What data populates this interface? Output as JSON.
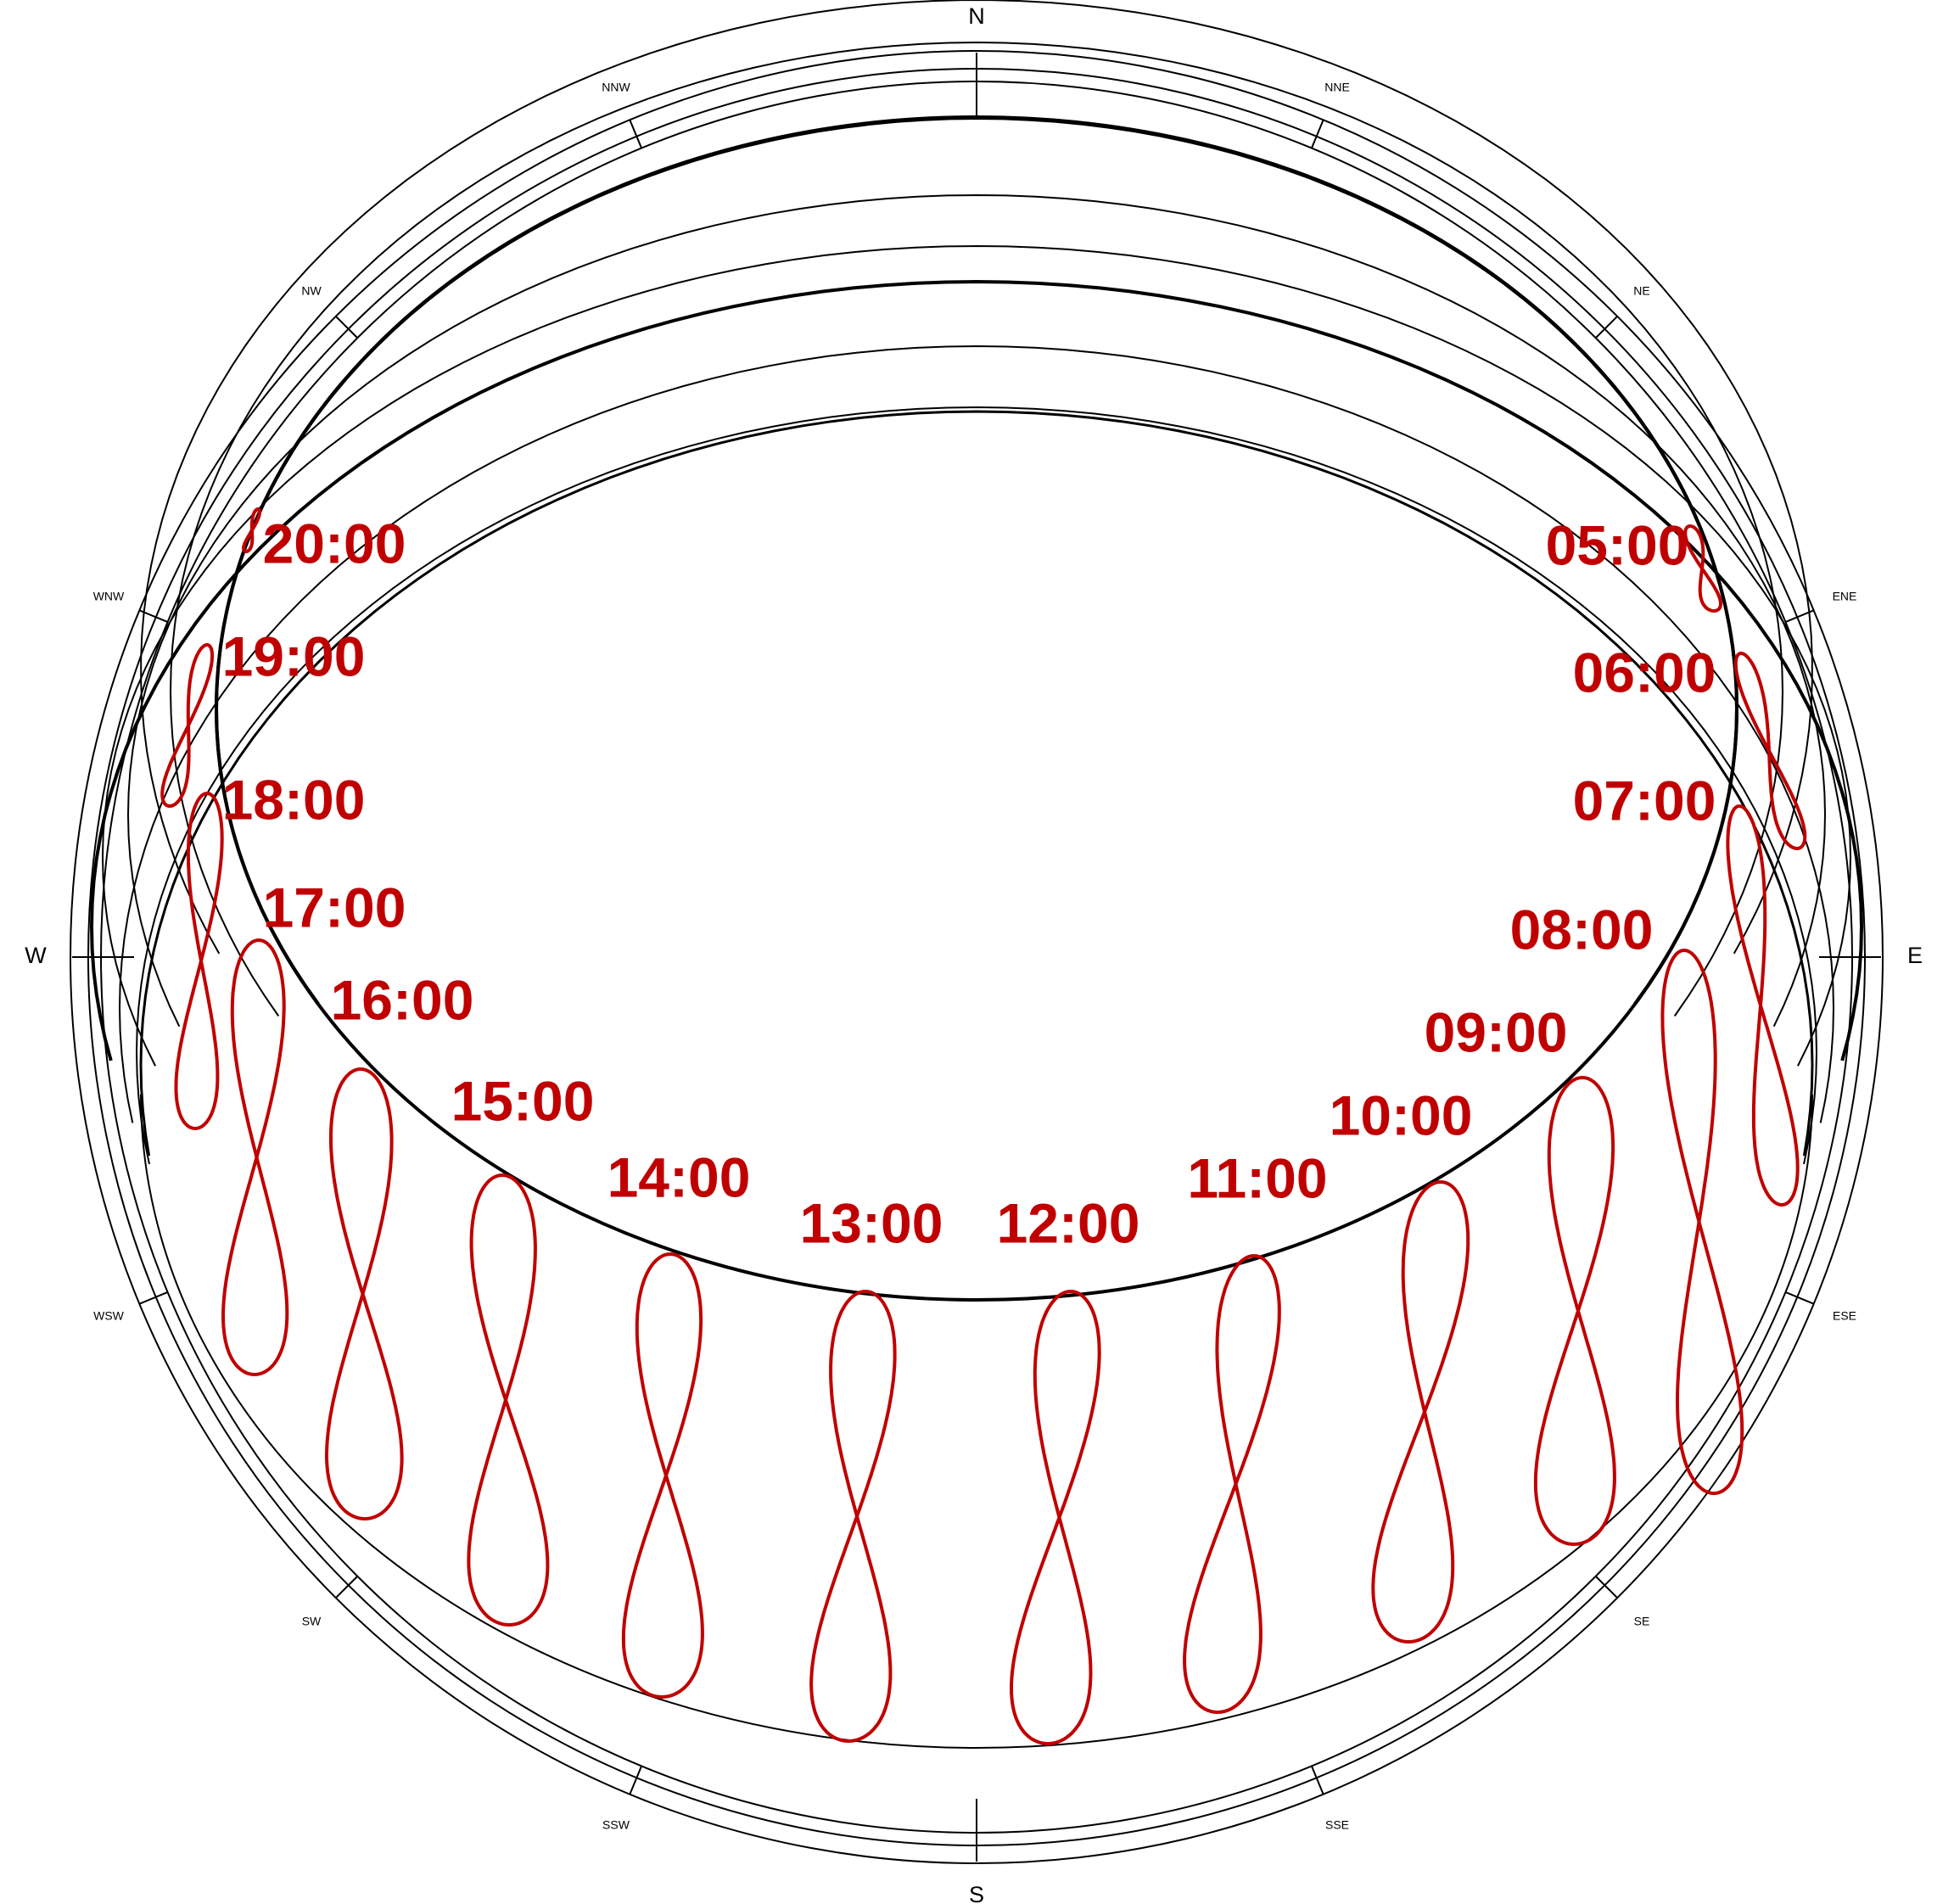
{
  "chart_data": {
    "type": "diagram",
    "title": "",
    "cardinal_labels": [
      "N",
      "E",
      "S",
      "W"
    ],
    "intercardinal_labels": [
      "NNE",
      "NE",
      "ENE",
      "ESE",
      "SE",
      "SSE",
      "SSW",
      "SW",
      "WSW",
      "WNW",
      "NW",
      "NNW"
    ],
    "hours": [
      "05:00",
      "06:00",
      "07:00",
      "08:00",
      "09:00",
      "10:00",
      "11:00",
      "12:00",
      "13:00",
      "14:00",
      "15:00",
      "16:00",
      "17:00",
      "18:00",
      "19:00",
      "20:00"
    ]
  },
  "colors": {
    "analemma": "#c00000",
    "hour_label": "#c00000",
    "lines": "#000000",
    "background": "#ffffff"
  }
}
